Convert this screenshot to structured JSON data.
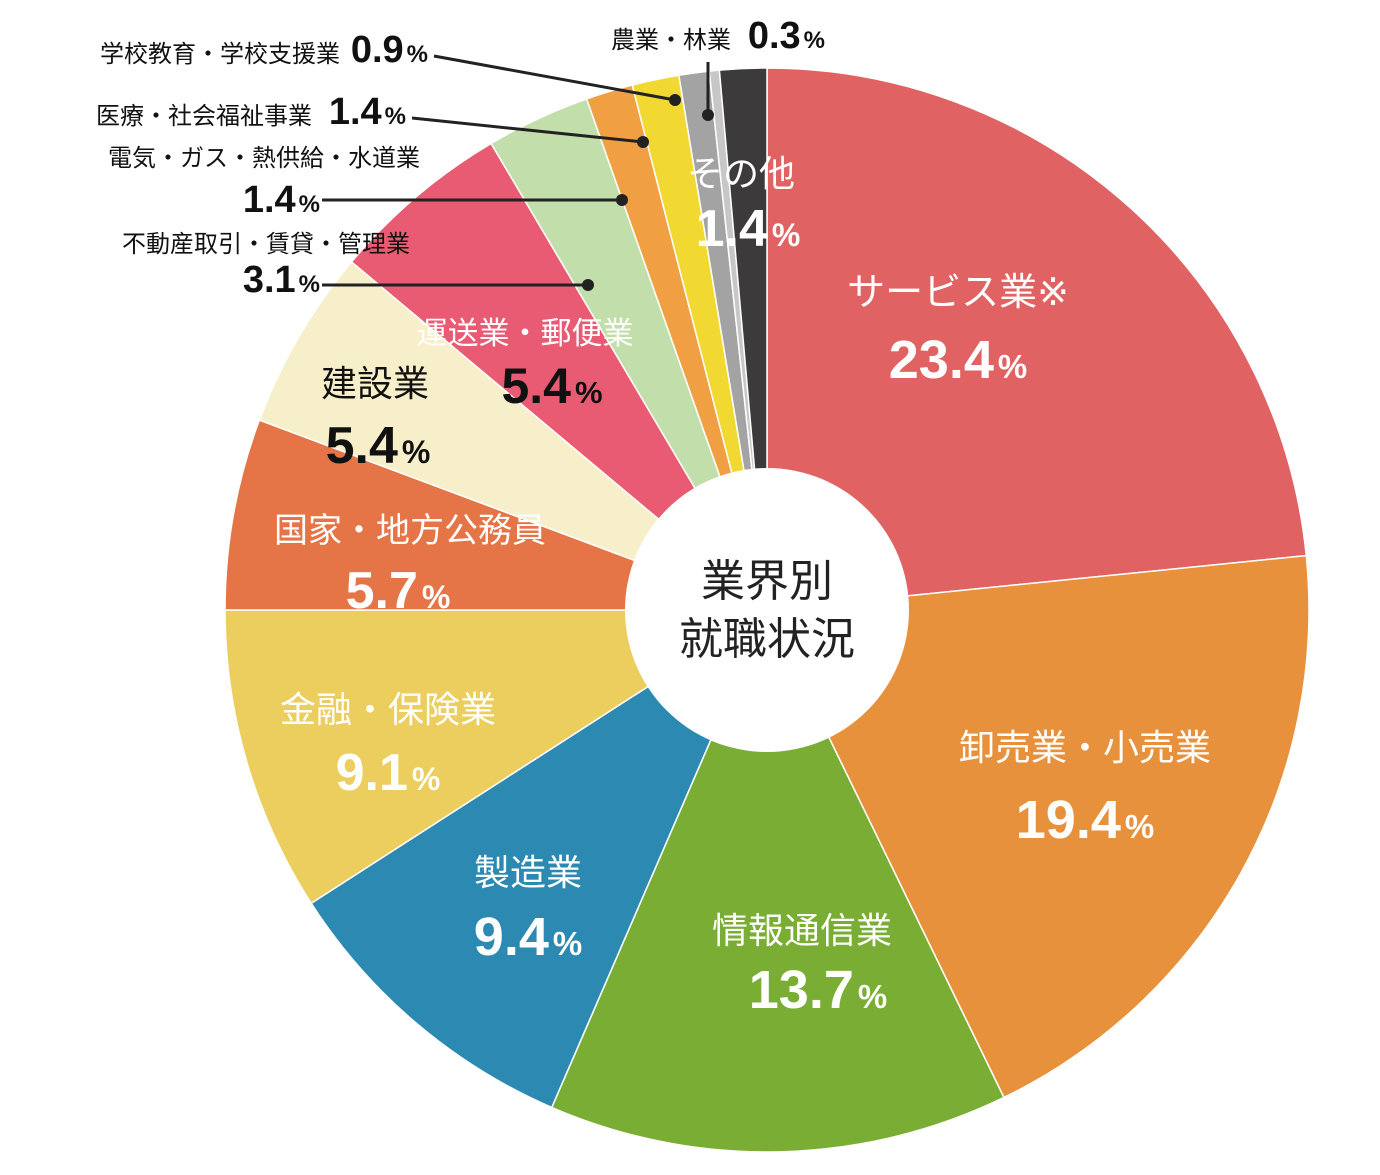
{
  "chart_data": {
    "type": "pie",
    "title": "業界別\n就職状況",
    "title_lines": [
      "業界別",
      "就職状況"
    ],
    "slices": [
      {
        "label": "サービス業※",
        "value": 23.4,
        "display": "23.4",
        "color": "#E06262"
      },
      {
        "label": "卸売業・小売業",
        "value": 19.4,
        "display": "19.4",
        "color": "#E8913C"
      },
      {
        "label": "情報通信業",
        "value": 13.7,
        "display": "13.7",
        "color": "#7AAD34"
      },
      {
        "label": "製造業",
        "value": 9.4,
        "display": "9.4",
        "color": "#2B89B2"
      },
      {
        "label": "金融・保険業",
        "value": 9.1,
        "display": "9.1",
        "color": "#ECCE5E"
      },
      {
        "label": "国家・地方公務員",
        "value": 5.7,
        "display": "5.7",
        "color": "#E57547"
      },
      {
        "label": "建設業",
        "value": 5.4,
        "display": "5.4",
        "color": "#F7EFC9"
      },
      {
        "label": "運送業・郵便業",
        "value": 5.4,
        "display": "5.4",
        "color": "#E95B72"
      },
      {
        "label": "不動産取引・賃貸・管理業",
        "value": 3.1,
        "display": "3.1",
        "color": "#C2DEAA"
      },
      {
        "label": "電気・ガス・熱供給・水道業",
        "value": 1.4,
        "display": "1.4",
        "color": "#F0A043"
      },
      {
        "label": "医療・社会福祉事業",
        "value": 1.4,
        "display": "1.4",
        "color": "#F2D931"
      },
      {
        "label": "学校教育・学校支援業",
        "value": 0.9,
        "display": "0.9",
        "color": "#A3A3A3"
      },
      {
        "label": "農業・林業",
        "value": 0.3,
        "display": "0.3",
        "color": "#C7C7C7"
      },
      {
        "label": "その他",
        "value": 1.4,
        "display": "1.4",
        "color": "#3C3A3A"
      }
    ],
    "percent_sign": "%"
  }
}
